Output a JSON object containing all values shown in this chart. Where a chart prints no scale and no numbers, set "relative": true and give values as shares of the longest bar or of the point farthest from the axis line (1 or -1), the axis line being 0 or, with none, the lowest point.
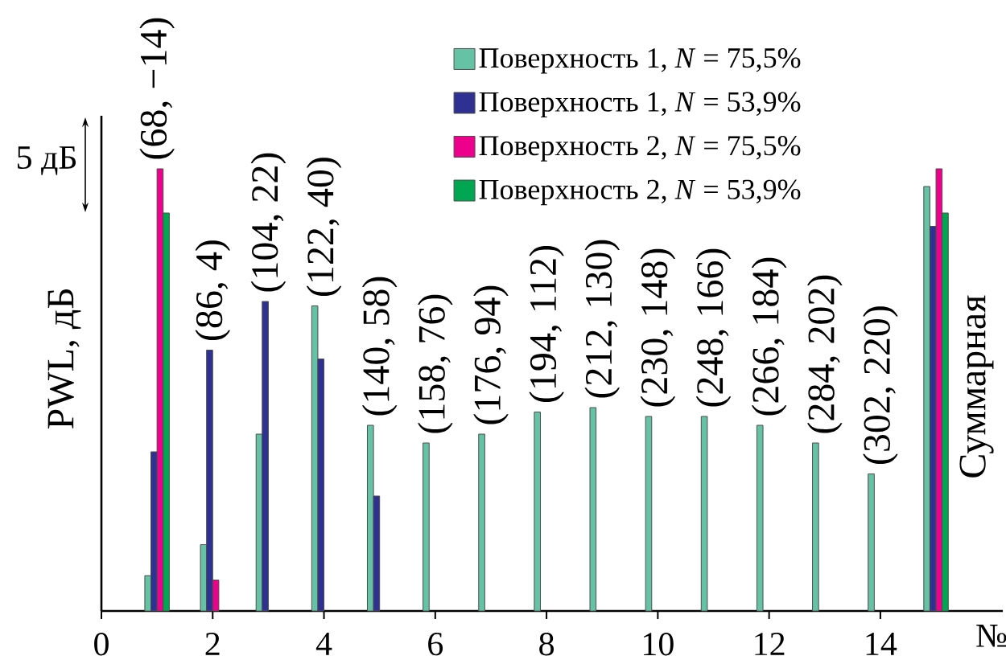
{
  "chart_data": {
    "type": "bar",
    "relative": true,
    "x": [
      1,
      2,
      3,
      4,
      5,
      6,
      7,
      8,
      9,
      10,
      11,
      12,
      13,
      14,
      15
    ],
    "xlim": [
      0,
      16.2
    ],
    "xticks": [
      0,
      2,
      4,
      6,
      8,
      10,
      12,
      14
    ],
    "xlabel": "№",
    "ylabel": "PWL, дБ",
    "legend": "top right",
    "series": [
      {
        "name": "Поверхность 1, *N* = 75,5%",
        "color": "#66c2a4",
        "values": [
          0.08,
          0.15,
          0.4,
          0.69,
          0.42,
          0.38,
          0.4,
          0.45,
          0.46,
          0.44,
          0.44,
          0.42,
          0.38,
          0.31,
          0.96
        ]
      },
      {
        "name": "Поверхность 1, *N* = 53,9%",
        "color": "#2e3192",
        "values": [
          0.36,
          0.59,
          0.7,
          0.57,
          0.26,
          null,
          null,
          null,
          null,
          null,
          null,
          null,
          null,
          null,
          0.87
        ]
      },
      {
        "name": "Поверхность 2, *N* = 75,5%",
        "color": "#ec008c",
        "values": [
          1,
          0.07,
          null,
          null,
          null,
          null,
          null,
          null,
          null,
          null,
          null,
          null,
          null,
          null,
          1
        ]
      },
      {
        "name": "Поверхность 2, *N* = 53,9%",
        "color": "#00a651",
        "values": [
          0.9,
          null,
          null,
          null,
          null,
          null,
          null,
          null,
          null,
          null,
          null,
          null,
          null,
          null,
          0.9
        ]
      }
    ],
    "annotations": [
      "5 дБ",
      {
        "text": "(68, −14)",
        "x": 1,
        "y": 1
      },
      {
        "text": "(86, 4)",
        "x": 2,
        "y": 0.59
      },
      {
        "text": "(104, 22)",
        "x": 3,
        "y": 0.7
      },
      {
        "text": "(122, 40)",
        "x": 4,
        "y": 0.69
      },
      {
        "text": "(140, 58)",
        "x": 5,
        "y": 0.42
      },
      {
        "text": "(158, 76)",
        "x": 6,
        "y": 0.38
      },
      {
        "text": "(176, 94)",
        "x": 7,
        "y": 0.4
      },
      {
        "text": "(194, 112)",
        "x": 8,
        "y": 0.45
      },
      {
        "text": "(212, 130)",
        "x": 9,
        "y": 0.46
      },
      {
        "text": "(230, 148)",
        "x": 10,
        "y": 0.44
      },
      {
        "text": "(248, 166)",
        "x": 11,
        "y": 0.44
      },
      {
        "text": "(266, 184)",
        "x": 12,
        "y": 0.42
      },
      {
        "text": "(284, 202)",
        "x": 13,
        "y": 0.38
      },
      {
        "text": "(302, 220)",
        "x": 14,
        "y": 0.31
      },
      "Суммарная"
    ]
  }
}
